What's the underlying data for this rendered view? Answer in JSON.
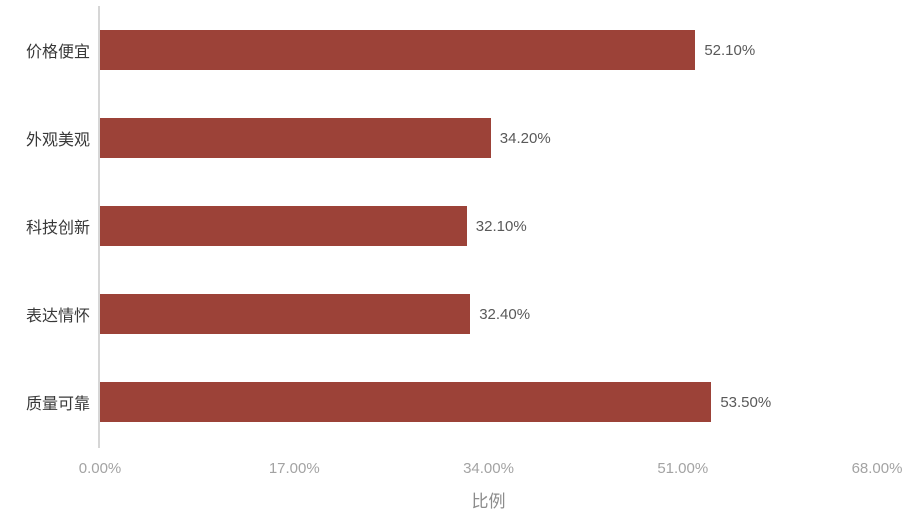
{
  "chart_data": {
    "type": "bar",
    "orientation": "horizontal",
    "title": "",
    "categories": [
      "价格便宜",
      "外观美观",
      "科技创新",
      "表达情怀",
      "质量可靠"
    ],
    "values": [
      52.1,
      34.2,
      32.1,
      32.4,
      53.5
    ],
    "value_labels": [
      "52.10%",
      "34.20%",
      "32.10%",
      "32.40%",
      "53.50%"
    ],
    "xlabel": "比例",
    "ylabel": "",
    "x_ticks": [
      "0.00%",
      "17.00%",
      "34.00%",
      "51.00%",
      "68.00%"
    ],
    "xlim": [
      0,
      68
    ],
    "grid": false,
    "legend": false,
    "colors": {
      "bar_fill": "#9C4238",
      "axis_line": "#d6d6d6",
      "category_label": "#383838",
      "value_label": "#595959",
      "tick_label": "#a3a3a3",
      "axis_title": "#8c8c8c",
      "background": "#ffffff"
    }
  }
}
